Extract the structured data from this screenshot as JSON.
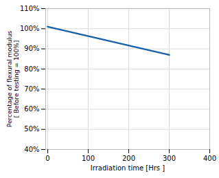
{
  "chart_data": {
    "type": "line",
    "x": [
      0,
      300
    ],
    "values": [
      101,
      87
    ],
    "color": "#1a5fa8",
    "xlabel": "Irradiation time [Hrs ]",
    "ylabel": "Percentage of flexural modulus\n[ Before testing = 100%]",
    "xlim": [
      -5,
      400
    ],
    "ylim": [
      40,
      110
    ],
    "xticks": [
      0,
      100,
      200,
      300,
      400
    ],
    "yticks": [
      {
        "value": 40,
        "label": "40%"
      },
      {
        "value": 50,
        "label": "50%"
      },
      {
        "value": 60,
        "label": "60%"
      },
      {
        "value": 70,
        "label": "70%"
      },
      {
        "value": 80,
        "label": "80%"
      },
      {
        "value": 90,
        "label": "90%"
      },
      {
        "value": 100,
        "label": "100%"
      },
      {
        "value": 110,
        "label": "110%"
      }
    ],
    "grid": true
  }
}
